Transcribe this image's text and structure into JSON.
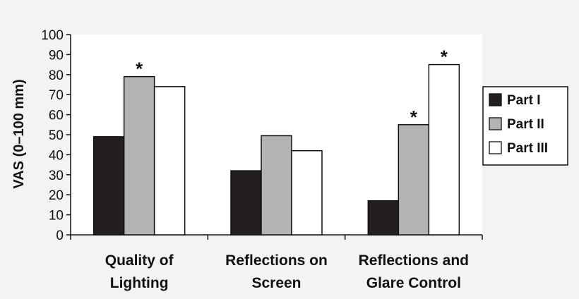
{
  "chart_data": {
    "type": "bar",
    "ylabel": "VAS (0–100 mm)",
    "ylim": [
      0,
      100
    ],
    "yticks": [
      0,
      10,
      20,
      30,
      40,
      50,
      60,
      70,
      80,
      90,
      100
    ],
    "categories": [
      [
        "Quality of",
        "Lighting"
      ],
      [
        "Reflections on",
        "Screen"
      ],
      [
        "Reflections and",
        "Glare Control"
      ]
    ],
    "series": [
      {
        "name": "Part I",
        "color": "#231f20",
        "values": [
          49,
          32,
          17
        ]
      },
      {
        "name": "Part II",
        "color": "#b3b3b3",
        "values": [
          79,
          49.5,
          55
        ]
      },
      {
        "name": "Part III",
        "color": "#ffffff",
        "values": [
          74,
          42,
          85
        ]
      }
    ],
    "annotations": [
      {
        "text": "*",
        "category": 0,
        "series": 1
      },
      {
        "text": "*",
        "category": 2,
        "series": 1
      },
      {
        "text": "*",
        "category": 2,
        "series": 2
      }
    ],
    "legend": "right"
  }
}
